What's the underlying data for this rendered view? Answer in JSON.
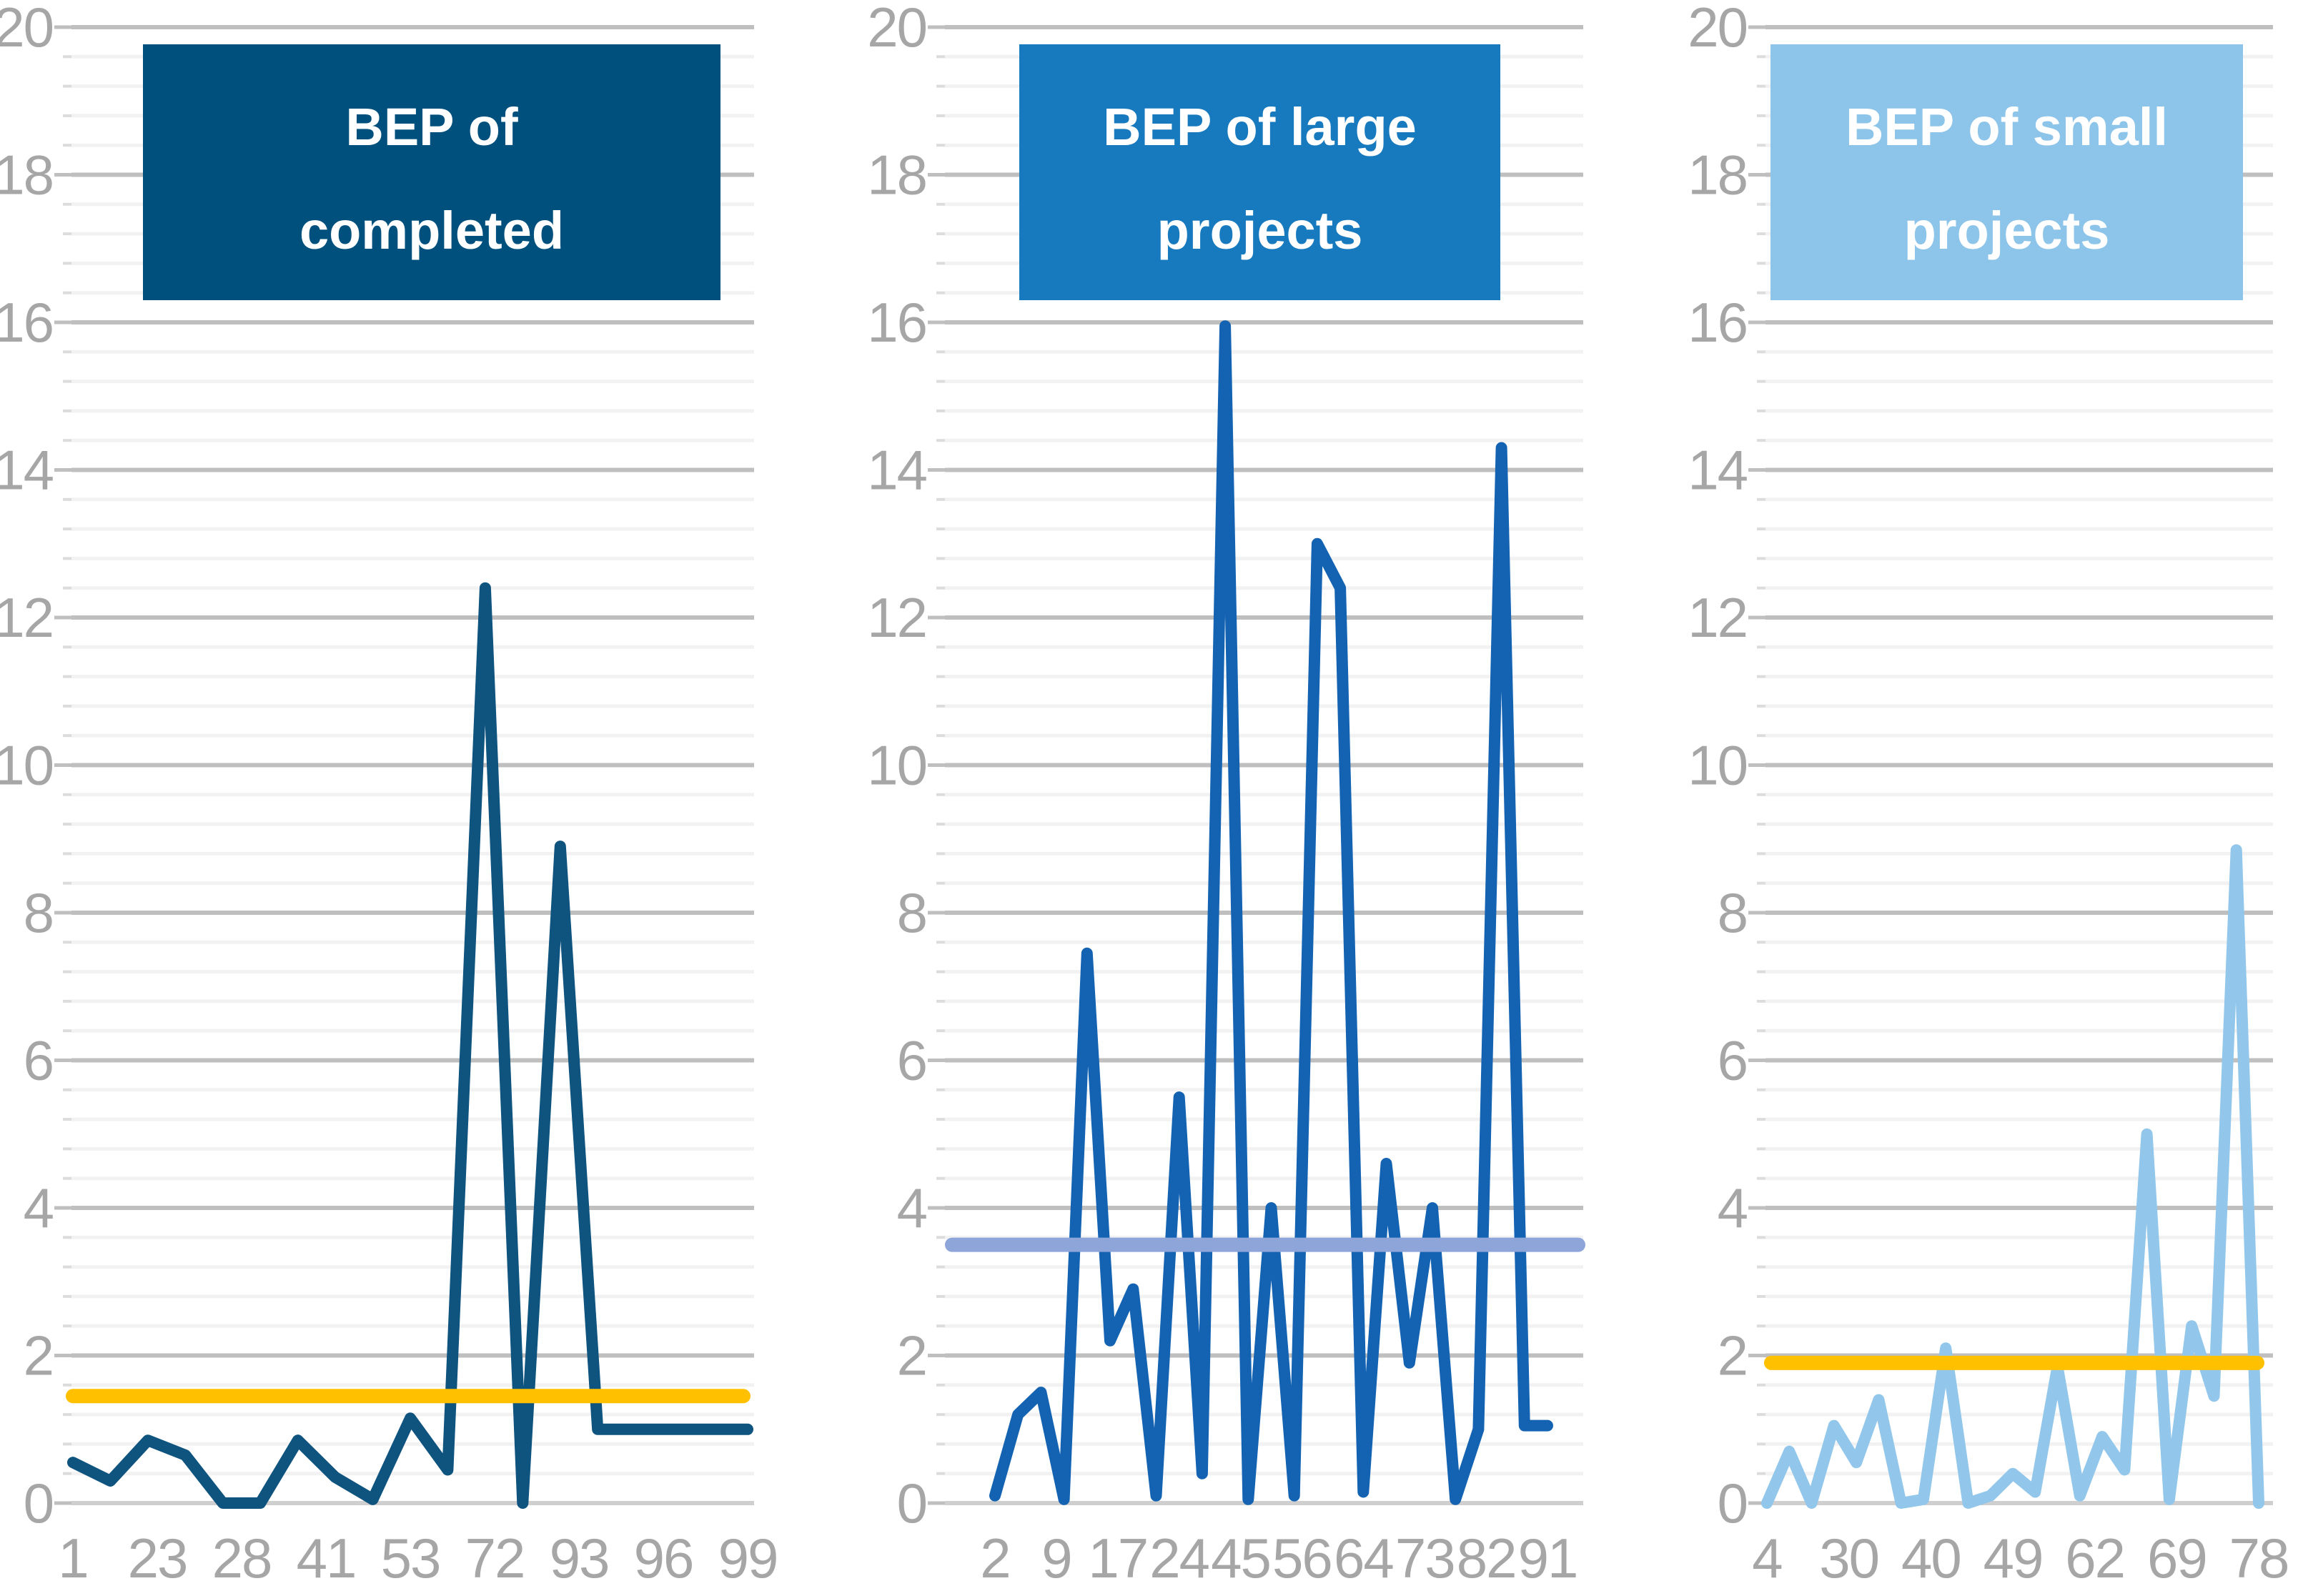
{
  "styles": {
    "background": "#FFFFFF",
    "axis_label_color": "#A6A6A6",
    "major_grid_color": "#BFBFBF",
    "minor_grid_color": "#F2F2F2",
    "zero_line_color": "#CFCFCF",
    "major_tick_color": "#BFBFBF",
    "minor_tick_color": "#DCDCDC",
    "title_text_color": "#FFFFFF",
    "gold": "#FFC000",
    "lavender": "#8EA5DA"
  },
  "axis": {
    "y_min": 0,
    "y_max": 20,
    "y_major_step": 2,
    "y_minor_step": 0.4,
    "y_tick_labels": [
      "0",
      "2",
      "4",
      "6",
      "8",
      "10",
      "12",
      "14",
      "16",
      "18",
      "20"
    ]
  },
  "chart_data": [
    {
      "type": "line",
      "title": "BEP of completed",
      "title_lines": [
        "BEP of",
        "completed"
      ],
      "title_bg": "#00507E",
      "line_color": "#0F537F",
      "reference_line": {
        "value": 1.45,
        "color": "#FFC000"
      },
      "x_tick_labels": [
        "1",
        "23",
        "28",
        "41",
        "53",
        "72",
        "93",
        "96",
        "99"
      ],
      "values": [
        0.55,
        0.3,
        0.85,
        0.65,
        0.0,
        0.0,
        0.85,
        0.35,
        0.05,
        1.15,
        0.45,
        12.4,
        0.0,
        8.9,
        1.0,
        1.0,
        1.0,
        1.0,
        1.0
      ],
      "ylim": [
        0,
        20
      ],
      "grid": "on",
      "legend": "none"
    },
    {
      "type": "line",
      "title": "BEP of large projects",
      "title_lines": [
        "BEP of large",
        "projects"
      ],
      "title_bg": "#1779BE",
      "line_color": "#1463B2",
      "reference_line": {
        "value": 3.5,
        "color": "#8EA5DA"
      },
      "x_tick_labels": [
        "2",
        "9",
        "17",
        "24",
        "45",
        "56",
        "64",
        "73",
        "82",
        "91"
      ],
      "values": [
        0.1,
        1.2,
        1.5,
        0.05,
        7.45,
        2.2,
        2.9,
        0.1,
        5.5,
        0.4,
        15.95,
        0.05,
        4.0,
        0.1,
        13.0,
        12.4,
        0.15,
        4.6,
        1.9,
        4.0,
        0.05,
        1.0,
        14.3,
        1.05,
        1.05
      ],
      "ylim": [
        0,
        20
      ],
      "grid": "on",
      "legend": "none"
    },
    {
      "type": "line",
      "title": "BEP of small projects",
      "title_lines": [
        "BEP of small",
        "projects"
      ],
      "title_bg": "#8DC4E9",
      "line_color": "#92C7EB",
      "reference_line": {
        "value": 1.9,
        "color": "#FFC000"
      },
      "x_tick_labels": [
        "4",
        "30",
        "40",
        "49",
        "62",
        "69",
        "78"
      ],
      "values": [
        0.0,
        0.7,
        0.0,
        1.05,
        0.55,
        1.4,
        0.0,
        0.05,
        2.1,
        0.0,
        0.1,
        0.4,
        0.15,
        1.85,
        0.1,
        0.9,
        0.45,
        5.0,
        0.05,
        2.4,
        1.45,
        8.85,
        0.0
      ],
      "ylim": [
        0,
        20
      ],
      "grid": "on",
      "legend": "none"
    }
  ]
}
